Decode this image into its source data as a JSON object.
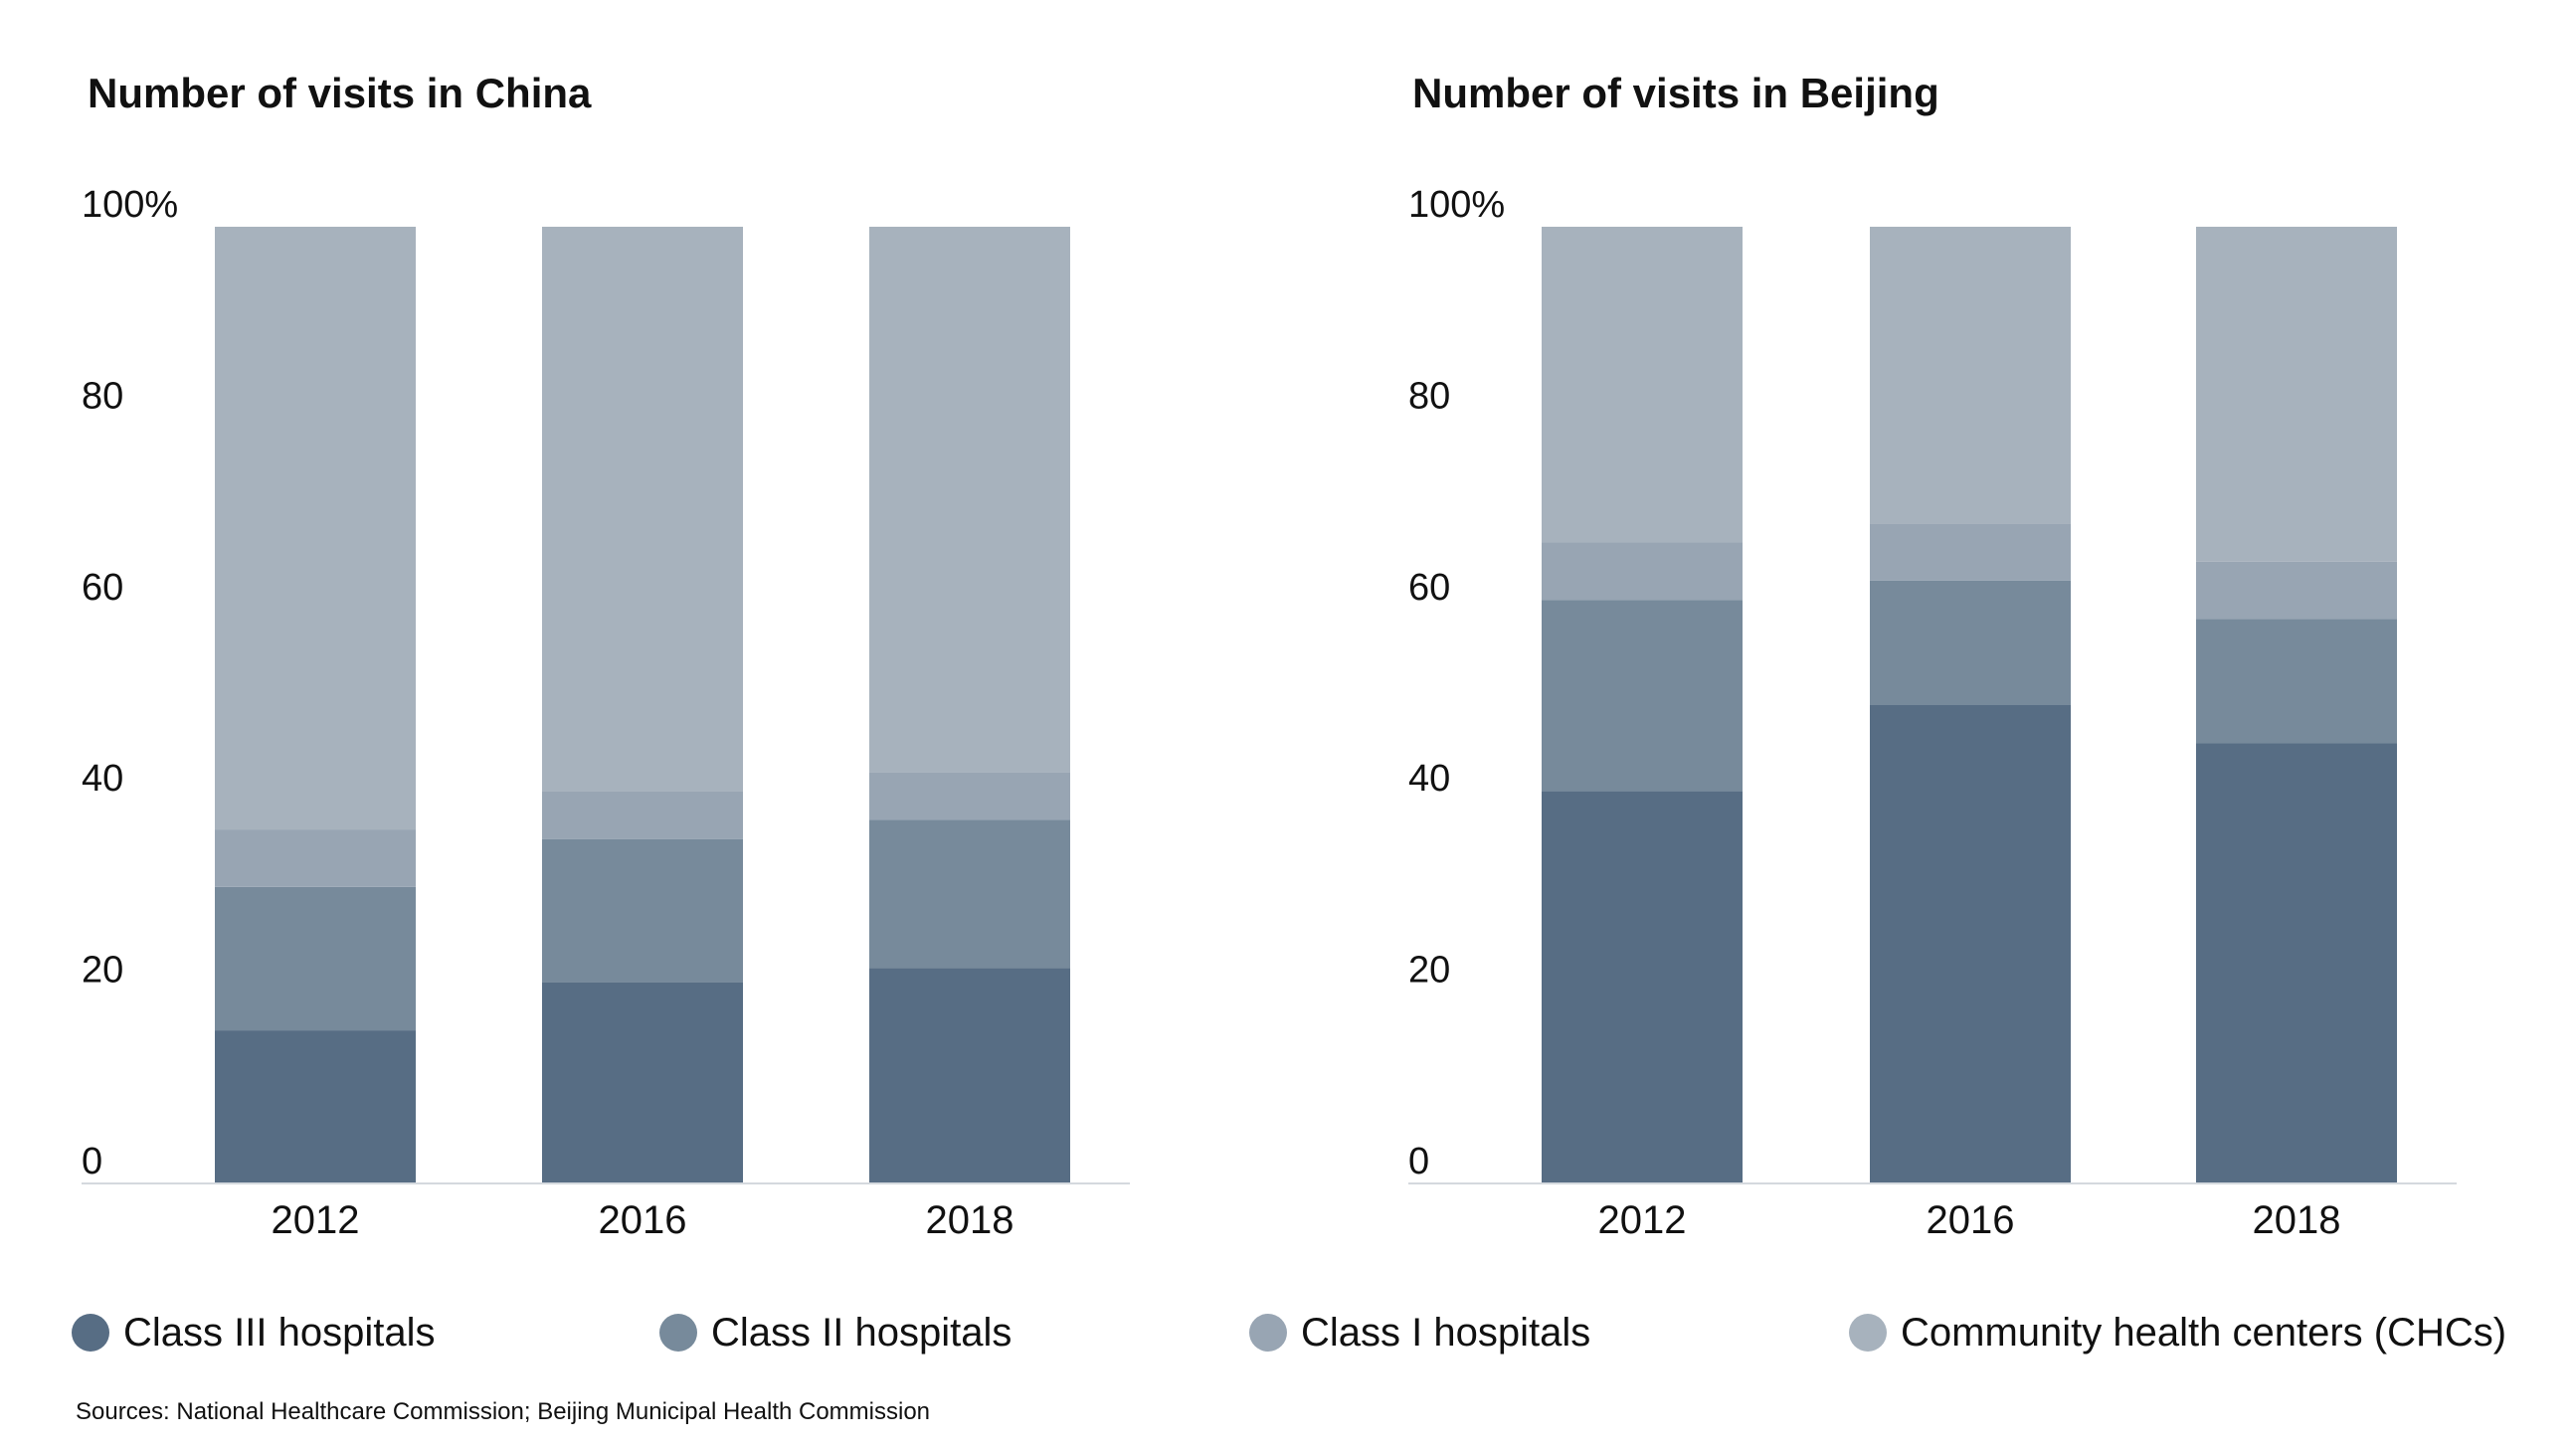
{
  "chart_data": [
    {
      "type": "bar",
      "stacked": true,
      "title": "Number of visits in China",
      "categories": [
        "2012",
        "2016",
        "2018"
      ],
      "y_ticks": [
        "100%",
        "80",
        "60",
        "40",
        "20",
        "0"
      ],
      "ylim": [
        0,
        100
      ],
      "grid": false,
      "series": [
        {
          "name": "Class III hospitals",
          "values": [
            16,
            21,
            22.5
          ]
        },
        {
          "name": "Class II hospitals",
          "values": [
            15,
            15,
            15.5
          ]
        },
        {
          "name": "Class I hospitals",
          "values": [
            6,
            5,
            5
          ]
        },
        {
          "name": "Community health centers (CHCs)",
          "values": [
            63,
            59,
            57
          ]
        }
      ]
    },
    {
      "type": "bar",
      "stacked": true,
      "title": "Number of visits in Beijing",
      "categories": [
        "2012",
        "2016",
        "2018"
      ],
      "y_ticks": [
        "100%",
        "80",
        "60",
        "40",
        "20",
        "0"
      ],
      "ylim": [
        0,
        100
      ],
      "grid": false,
      "series": [
        {
          "name": "Class III hospitals",
          "values": [
            41,
            50,
            46
          ]
        },
        {
          "name": "Class II hospitals",
          "values": [
            20,
            13,
            13
          ]
        },
        {
          "name": "Class I hospitals",
          "values": [
            6,
            6,
            6
          ]
        },
        {
          "name": "Community health centers (CHCs)",
          "values": [
            33,
            31,
            35
          ]
        }
      ]
    }
  ],
  "legend": {
    "placement": "bottom",
    "items": [
      {
        "label": "Class III hospitals",
        "color": "#576d84"
      },
      {
        "label": "Class II hospitals",
        "color": "#778a9b"
      },
      {
        "label": "Class I hospitals",
        "color": "#98a5b3"
      },
      {
        "label": "Community health centers (CHCs)",
        "color": "#a7b2bd"
      }
    ]
  },
  "source": "Sources: National Healthcare Commission; Beijing Municipal Health Commission"
}
